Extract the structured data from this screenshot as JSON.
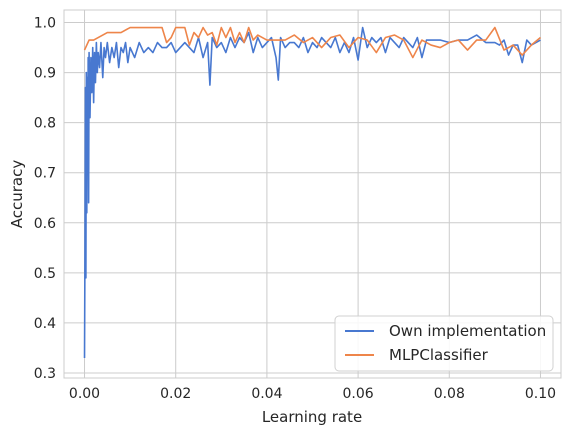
{
  "chart_data": {
    "type": "line",
    "title": "",
    "xlabel": "Learning rate",
    "ylabel": "Accuracy",
    "xlim": [
      -0.0045,
      0.1045
    ],
    "ylim": [
      0.29,
      1.025
    ],
    "xticks": [
      0.0,
      0.02,
      0.04,
      0.06,
      0.08,
      0.1
    ],
    "xtick_labels": [
      "0.00",
      "0.02",
      "0.04",
      "0.06",
      "0.08",
      "0.10"
    ],
    "yticks": [
      0.3,
      0.4,
      0.5,
      0.6,
      0.7,
      0.8,
      0.9,
      1.0
    ],
    "ytick_labels": [
      "0.3",
      "0.4",
      "0.5",
      "0.6",
      "0.7",
      "0.8",
      "0.9",
      "1.0"
    ],
    "grid": true,
    "legend_position": "lower-right",
    "series": [
      {
        "name": "Own implementation",
        "color": "#4878d0",
        "x": [
          0.0,
          0.0001,
          0.0002,
          0.0003,
          0.0004,
          0.0005,
          0.0006,
          0.0007,
          0.0008,
          0.0009,
          0.001,
          0.0012,
          0.0014,
          0.0016,
          0.0018,
          0.002,
          0.0022,
          0.0024,
          0.0026,
          0.0028,
          0.003,
          0.0033,
          0.0036,
          0.004,
          0.0043,
          0.0046,
          0.005,
          0.0055,
          0.006,
          0.0065,
          0.007,
          0.0075,
          0.008,
          0.0085,
          0.009,
          0.0095,
          0.01,
          0.011,
          0.012,
          0.013,
          0.014,
          0.015,
          0.016,
          0.017,
          0.018,
          0.019,
          0.02,
          0.021,
          0.022,
          0.023,
          0.024,
          0.025,
          0.026,
          0.027,
          0.0275,
          0.028,
          0.029,
          0.03,
          0.031,
          0.032,
          0.033,
          0.034,
          0.035,
          0.036,
          0.037,
          0.038,
          0.039,
          0.04,
          0.041,
          0.042,
          0.0425,
          0.043,
          0.044,
          0.045,
          0.046,
          0.047,
          0.048,
          0.049,
          0.05,
          0.051,
          0.052,
          0.053,
          0.054,
          0.055,
          0.056,
          0.057,
          0.058,
          0.059,
          0.06,
          0.061,
          0.062,
          0.063,
          0.064,
          0.065,
          0.066,
          0.067,
          0.068,
          0.069,
          0.07,
          0.071,
          0.072,
          0.073,
          0.074,
          0.075,
          0.076,
          0.078,
          0.08,
          0.082,
          0.084,
          0.086,
          0.088,
          0.09,
          0.091,
          0.092,
          0.093,
          0.094,
          0.095,
          0.096,
          0.097,
          0.098,
          0.099,
          0.1
        ],
        "y": [
          0.33,
          0.55,
          0.87,
          0.49,
          0.9,
          0.62,
          0.89,
          0.7,
          0.93,
          0.64,
          0.94,
          0.81,
          0.93,
          0.86,
          0.95,
          0.84,
          0.94,
          0.88,
          0.96,
          0.9,
          0.94,
          0.91,
          0.96,
          0.89,
          0.95,
          0.93,
          0.96,
          0.92,
          0.95,
          0.93,
          0.96,
          0.91,
          0.95,
          0.94,
          0.96,
          0.92,
          0.95,
          0.93,
          0.96,
          0.94,
          0.95,
          0.94,
          0.96,
          0.95,
          0.95,
          0.96,
          0.94,
          0.95,
          0.96,
          0.95,
          0.94,
          0.97,
          0.93,
          0.96,
          0.875,
          0.97,
          0.95,
          0.96,
          0.94,
          0.97,
          0.95,
          0.97,
          0.96,
          0.98,
          0.94,
          0.97,
          0.95,
          0.96,
          0.97,
          0.93,
          0.885,
          0.97,
          0.95,
          0.96,
          0.96,
          0.95,
          0.97,
          0.94,
          0.96,
          0.95,
          0.97,
          0.96,
          0.95,
          0.97,
          0.94,
          0.96,
          0.94,
          0.97,
          0.925,
          0.99,
          0.95,
          0.97,
          0.96,
          0.97,
          0.94,
          0.97,
          0.96,
          0.95,
          0.97,
          0.96,
          0.95,
          0.97,
          0.93,
          0.965,
          0.965,
          0.965,
          0.96,
          0.965,
          0.965,
          0.975,
          0.96,
          0.96,
          0.955,
          0.965,
          0.935,
          0.955,
          0.955,
          0.92,
          0.965,
          0.955,
          0.96,
          0.965
        ]
      },
      {
        "name": "MLPClassifier",
        "color": "#ee854a",
        "x": [
          0.0,
          0.001,
          0.002,
          0.004,
          0.005,
          0.008,
          0.01,
          0.012,
          0.014,
          0.016,
          0.017,
          0.018,
          0.019,
          0.02,
          0.021,
          0.022,
          0.023,
          0.024,
          0.025,
          0.026,
          0.027,
          0.028,
          0.029,
          0.03,
          0.031,
          0.032,
          0.033,
          0.034,
          0.035,
          0.036,
          0.037,
          0.038,
          0.039,
          0.04,
          0.042,
          0.044,
          0.046,
          0.048,
          0.05,
          0.052,
          0.054,
          0.056,
          0.058,
          0.06,
          0.062,
          0.064,
          0.066,
          0.068,
          0.07,
          0.072,
          0.074,
          0.076,
          0.078,
          0.08,
          0.082,
          0.084,
          0.086,
          0.088,
          0.09,
          0.092,
          0.094,
          0.096,
          0.098,
          0.1
        ],
        "y": [
          0.945,
          0.965,
          0.965,
          0.975,
          0.98,
          0.98,
          0.99,
          0.99,
          0.99,
          0.99,
          0.99,
          0.96,
          0.97,
          0.99,
          0.99,
          0.99,
          0.955,
          0.98,
          0.97,
          0.99,
          0.975,
          0.98,
          0.955,
          0.99,
          0.97,
          0.99,
          0.96,
          0.98,
          0.96,
          0.99,
          0.965,
          0.975,
          0.97,
          0.965,
          0.965,
          0.965,
          0.975,
          0.96,
          0.97,
          0.95,
          0.97,
          0.975,
          0.95,
          0.97,
          0.965,
          0.94,
          0.97,
          0.975,
          0.965,
          0.93,
          0.965,
          0.955,
          0.95,
          0.96,
          0.965,
          0.945,
          0.965,
          0.965,
          0.99,
          0.945,
          0.955,
          0.935,
          0.955,
          0.97
        ]
      }
    ]
  }
}
